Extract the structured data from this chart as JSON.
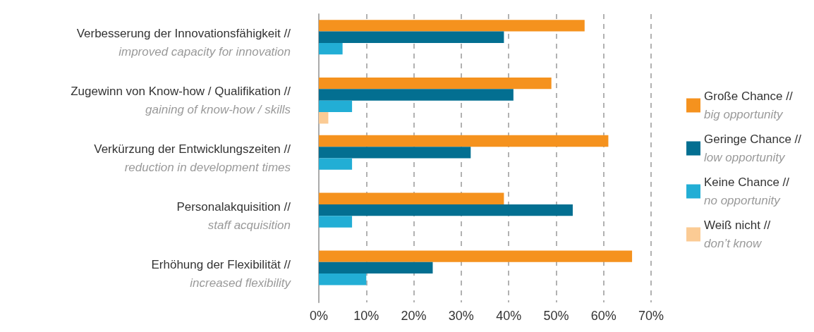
{
  "chart_data": {
    "type": "bar",
    "orientation": "horizontal",
    "categories": [
      "Verbesserung der Innovationsfähigkeit //\nimproved capacity for innovation",
      "Zugewinn von Know-how / Qualifikation //\ngaining of know-how / skills",
      "Verkürzung der Entwicklungszeiten //\nreduction in development times",
      "Personalakquisition //\nstaff acquisition",
      "Erhöhung der Flexibilität //\nincreased flexibility"
    ],
    "series": [
      {
        "name": "Große Chance //\nbig opportunity",
        "color": "#f5921e",
        "values": [
          56,
          49,
          61,
          39,
          66
        ]
      },
      {
        "name": "Geringe Chance //\nlow opportunity",
        "color": "#036f91",
        "values": [
          39,
          41,
          32,
          53.5,
          24
        ]
      },
      {
        "name": "Keine Chance //\nno opportunity",
        "color": "#22aed5",
        "values": [
          5,
          7,
          7,
          7,
          10
        ]
      },
      {
        "name": "Weiß nicht //\ndon’t know",
        "color": "#fbcb94",
        "values": [
          null,
          2,
          null,
          null,
          null
        ]
      }
    ],
    "xlim": [
      0,
      70
    ],
    "xticks": [
      {
        "value": 0,
        "label": "0%"
      },
      {
        "value": 10,
        "label": "10%"
      },
      {
        "value": 20,
        "label": "20%"
      },
      {
        "value": 30,
        "label": "30%"
      },
      {
        "value": 40,
        "label": "40%"
      },
      {
        "value": 50,
        "label": "50%"
      },
      {
        "value": 60,
        "label": "60%"
      },
      {
        "value": 70,
        "label": "70%"
      }
    ],
    "grid": "x",
    "legend": "right"
  }
}
